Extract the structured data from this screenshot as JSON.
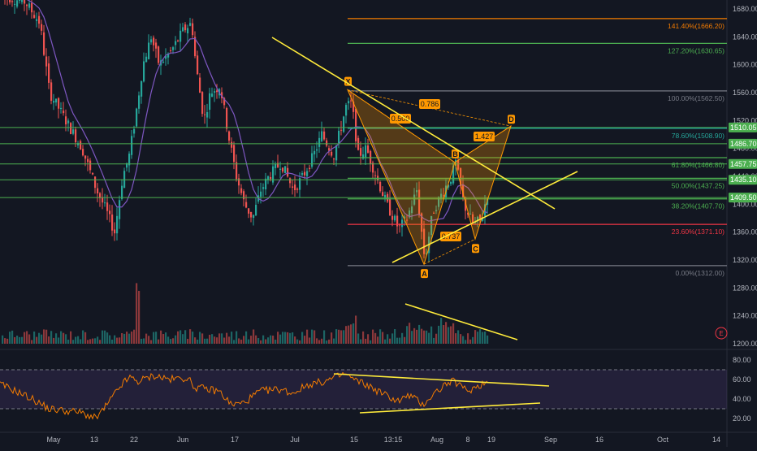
{
  "chart_data": {
    "type": "candlestick",
    "price_axis": {
      "ticks": [
        "1680.00",
        "1640.00",
        "1600.00",
        "1560.00",
        "1520.00",
        "1480.00",
        "1440.00",
        "1400.00",
        "1360.00",
        "1320.00",
        "1280.00",
        "1240.00",
        "1200.00"
      ],
      "ylim": [
        1180,
        1697
      ]
    },
    "date_axis": {
      "ticks": [
        "May",
        "13",
        "22",
        "Jun",
        "17",
        "Jul",
        "15",
        "13:15",
        "Aug",
        "8",
        "19",
        "Sep",
        "16",
        "Oct",
        "14"
      ]
    },
    "horizontal_levels": [
      {
        "label": "1510.05",
        "price": 1510.05,
        "color": "#4caf50"
      },
      {
        "label": "1486.70",
        "price": 1486.7,
        "color": "#4caf50"
      },
      {
        "label": "1457.75",
        "price": 1457.75,
        "color": "#4caf50"
      },
      {
        "label": "1435.10",
        "price": 1435.1,
        "color": "#4caf50"
      },
      {
        "label": "1409.50",
        "price": 1409.5,
        "color": "#4caf50"
      }
    ],
    "fib_levels": [
      {
        "label": "141.40%(1666.20)",
        "price": 1666.2,
        "color": "#f57c00"
      },
      {
        "label": "127.20%(1630.65)",
        "price": 1630.65,
        "color": "#4caf50"
      },
      {
        "label": "100.00%(1562.50)",
        "price": 1562.5,
        "color": "#787b86"
      },
      {
        "label": "78.60%(1508.90)",
        "price": 1508.9,
        "color": "#26a69a"
      },
      {
        "label": "61.80%(1466.80)",
        "price": 1466.8,
        "color": "#4caf50"
      },
      {
        "label": "50.00%(1437.25)",
        "price": 1437.25,
        "color": "#4caf50"
      },
      {
        "label": "38.20%(1407.70)",
        "price": 1407.7,
        "color": "#4caf50"
      },
      {
        "label": "23.60%(1371.10)",
        "price": 1371.1,
        "color": "#f23645"
      },
      {
        "label": "0.00%(1312.00)",
        "price": 1312.0,
        "color": "#787b86"
      }
    ],
    "harmonic_pattern": {
      "points": [
        {
          "label": "X",
          "price": 1564
        },
        {
          "label": "A",
          "price": 1314
        },
        {
          "label": "B",
          "price": 1460
        },
        {
          "label": "C",
          "price": 1350
        },
        {
          "label": "D",
          "price": 1512
        }
      ],
      "ratios": [
        "0.786",
        "0.500",
        "1.427",
        "0.737"
      ]
    },
    "rsi": {
      "ticks": [
        "80.00",
        "60.00",
        "40.00",
        "20.00"
      ],
      "ylim": [
        10,
        88
      ],
      "upper_band": 70,
      "lower_band": 30
    },
    "series_colors": {
      "up": "#26a69a",
      "down": "#ef5350",
      "ma": "#7e57c2",
      "trendline": "#ffeb3b",
      "rsi": "#f57c00"
    }
  },
  "axis_badge": "E"
}
